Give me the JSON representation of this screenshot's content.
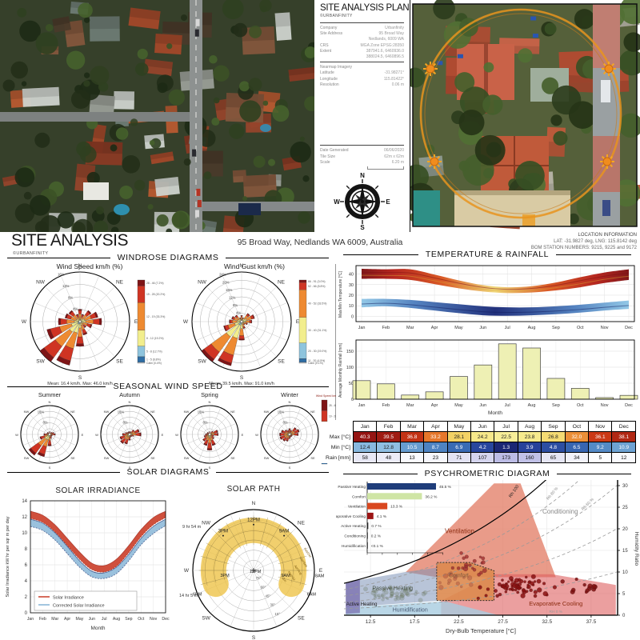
{
  "brand": "©URBANFINITY",
  "plan_panel": {
    "title": "SITE ANALYSIS PLAN",
    "info": [
      {
        "label": "Company",
        "value": "Urbanfinity"
      },
      {
        "label": "Site Address",
        "value": "95 Broad Way"
      },
      {
        "label": "",
        "value": "Nedlands, 6009 WA"
      },
      {
        "label": "CRS",
        "value": "MGA Zone EPSG:28350"
      },
      {
        "label": "Extent",
        "value": "387941.6, 6460936.0"
      },
      {
        "label": "",
        "value": "388024.5, 6460896.5"
      }
    ],
    "imagery": [
      {
        "label": "Nearmap Imagery",
        "value": ""
      },
      {
        "label": "Latitude",
        "value": "-31.98271°"
      },
      {
        "label": "Longitude",
        "value": "115.81422°"
      },
      {
        "label": "Resolution",
        "value": "0.06 m"
      }
    ],
    "generated": [
      {
        "label": "Date Generated",
        "value": "06/06/2020"
      },
      {
        "label": "Tile Size",
        "value": "62m x 62m"
      },
      {
        "label": "Scale",
        "value": "6.20 m"
      }
    ],
    "compass": {
      "n": "N",
      "e": "E",
      "s": "S",
      "w": "W"
    }
  },
  "header": {
    "title": "SITE ANALYSIS",
    "brand": "©URBANFINITY",
    "address": "95 Broad Way, Nedlands WA 6009, Australia",
    "location_title": "LOCATION INFORMATION",
    "location_line1": "LAT: -31.9827 deg, LNG: 115.8142 deg",
    "location_line2": "BOM STATION NUMBERS: 9215, 9225 and 9172"
  },
  "sections": {
    "windrose": "WINDROSE DIAGRAMS",
    "seasonal": "SEASONAL WIND SPEED",
    "solar": "SOLAR DIAGRAMS",
    "temp_rain": "TEMPERATURE & RAINFALL",
    "psychro": "PSYCHROMETRIC DIAGRAM"
  },
  "chart_data": [
    {
      "name": "wind_speed_rose",
      "type": "windrose",
      "title": "Wind Speed km/h (%)",
      "ring_ticks": [
        "4%",
        "8%",
        "12%",
        "16%"
      ],
      "ring_max": 16,
      "directions": [
        "N",
        "NNE",
        "NE",
        "ENE",
        "E",
        "ESE",
        "SE",
        "SSE",
        "S",
        "SSW",
        "SW",
        "WSW",
        "W",
        "WNW",
        "NW",
        "NNW"
      ],
      "totals": [
        4,
        2.5,
        4.5,
        6,
        7,
        4,
        2.5,
        4.5,
        8,
        14.5,
        16,
        11,
        7,
        5,
        4.5,
        2.5
      ],
      "stack_fractions": [
        0.06,
        0.2,
        0.36,
        0.28,
        0.1
      ],
      "bin_colors": [
        "#8ec4dd",
        "#f2ee8d",
        "#ee8a31",
        "#cf3423",
        "#7e1416"
      ],
      "legend": [
        {
          "label": "28 - 46 (7.2%)",
          "color": "#7e1416",
          "pct": 7.2
        },
        {
          "label": "19 - 28 (20.2%)",
          "color": "#cf3423",
          "pct": 20.2
        },
        {
          "label": "12 - 19 (33.3%)",
          "color": "#ee8a31",
          "pct": 33.3
        },
        {
          "label": "8 - 12 (19.2%)",
          "color": "#f2ee8d",
          "pct": 19.2
        },
        {
          "label": "5 - 8 (12.7%)",
          "color": "#8ec4dd",
          "pct": 12.7
        },
        {
          "label": "1 - 5 (6.8%)",
          "color": "#2e6da4",
          "pct": 6.8
        },
        {
          "label": "Calm (0.4%)",
          "color": "#dddddd",
          "pct": 0.4
        }
      ],
      "note": "Mean: 16.4 km/h, Max: 46.0 km/h"
    },
    {
      "name": "wind_gust_rose",
      "type": "windrose",
      "title": "Wind Gust km/h (%)",
      "ring_ticks": [
        "4%",
        "8%",
        "12%",
        "16%",
        "20%",
        "24%"
      ],
      "ring_max": 24,
      "directions": [
        "N",
        "NNE",
        "NE",
        "ENE",
        "E",
        "ESE",
        "SE",
        "SSE",
        "S",
        "SSW",
        "SW",
        "WSW",
        "W",
        "WNW",
        "NW",
        "NNW"
      ],
      "totals": [
        3,
        2,
        5,
        6.5,
        5,
        3,
        2,
        3.5,
        9,
        22,
        24,
        9,
        6,
        5,
        4,
        2
      ],
      "stack_fractions": [
        0.08,
        0.3,
        0.38,
        0.18,
        0.06
      ],
      "bin_colors": [
        "#8ec4dd",
        "#f2ee8d",
        "#ee8a31",
        "#cf3423",
        "#7e1416"
      ],
      "legend": [
        {
          "label": "66 - 91 (3.0%)",
          "color": "#7e1416",
          "pct": 3.0
        },
        {
          "label": "52 - 66 (8.8%)",
          "color": "#cf3423",
          "pct": 8.8
        },
        {
          "label": "40 - 52 (33.5%)",
          "color": "#ee8a31",
          "pct": 33.5
        },
        {
          "label": "30 - 40 (31.1%)",
          "color": "#f2ee8d",
          "pct": 31.1
        },
        {
          "label": "20 - 30 (19.0%)",
          "color": "#8ec4dd",
          "pct": 19.0
        },
        {
          "label": "11 - 20 (4.5%)",
          "color": "#2e6da4",
          "pct": 4.5
        },
        {
          "label": "Calm (0.1%)",
          "color": "#dddddd",
          "pct": 0.1
        }
      ],
      "note": "Mean: 39.5 km/h, Max: 91.0 km/h"
    },
    {
      "name": "seasonal_wind",
      "type": "windrose-small",
      "legend_title": "Wind Speed km/h",
      "legend": [
        {
          "label": "28 - 46",
          "color": "#7e1416"
        },
        {
          "label": "19 - 28",
          "color": "#cf3423"
        },
        {
          "label": "12 - 19",
          "color": "#ee8a31"
        },
        {
          "label": "8 - 12",
          "color": "#f2ee8d"
        },
        {
          "label": "5 - 8",
          "color": "#8ec4dd"
        },
        {
          "label": "1 - 5",
          "color": "#2e6da4"
        }
      ],
      "roses": [
        {
          "title": "Summer",
          "totals": [
            2,
            1,
            2,
            3,
            4,
            2,
            2,
            3,
            8,
            16,
            18,
            7,
            4,
            2,
            2,
            1
          ]
        },
        {
          "title": "Autumn",
          "totals": [
            2,
            2,
            4,
            7,
            8,
            3,
            2,
            2,
            4,
            7,
            8,
            7,
            5,
            3,
            2,
            2
          ]
        },
        {
          "title": "Spring",
          "totals": [
            2,
            1,
            3,
            6,
            6,
            3,
            4,
            8,
            11,
            8,
            6,
            4,
            3,
            2,
            2,
            1
          ]
        },
        {
          "title": "Winter",
          "totals": [
            4,
            3,
            6,
            7,
            6,
            2,
            2,
            2,
            3,
            5,
            6,
            7,
            7,
            6,
            4,
            3
          ]
        }
      ]
    },
    {
      "name": "solar_irradiance",
      "type": "area",
      "title": "SOLAR IRRADIANCE",
      "xlabel": "Month",
      "ylabel": "Solar Irradiance kW hr per sqr m per day",
      "months": [
        "Jan",
        "Feb",
        "Mar",
        "Apr",
        "May",
        "Jun",
        "Jul",
        "Aug",
        "Sep",
        "Oct",
        "Nov",
        "Dec"
      ],
      "ylim": [
        0,
        14
      ],
      "yticks": [
        0,
        2,
        4,
        6,
        8,
        10,
        12,
        14
      ],
      "series": [
        {
          "name": "Solar Irradiance",
          "color": "#cc4733",
          "edge": "#9c2418",
          "hi": [
            12.7,
            12.2,
            11.0,
            9.3,
            7.6,
            6.2,
            5.9,
            6.7,
            8.4,
            10.4,
            11.9,
            12.7
          ],
          "lo": [
            11.8,
            11.3,
            10.1,
            8.4,
            6.7,
            5.4,
            5.1,
            5.8,
            7.5,
            9.5,
            11.0,
            11.9
          ]
        },
        {
          "name": "Corrected Solar Irradiance",
          "color": "#8cb8d8",
          "edge": "#1c2f6e",
          "hi": [
            11.7,
            11.2,
            10.0,
            8.3,
            6.5,
            5.2,
            5.0,
            5.7,
            7.3,
            9.3,
            10.8,
            11.7
          ],
          "lo": [
            10.8,
            10.3,
            9.1,
            7.4,
            5.7,
            4.5,
            4.3,
            4.9,
            6.5,
            8.5,
            9.9,
            10.9
          ]
        }
      ]
    },
    {
      "name": "solar_path",
      "type": "polar",
      "title": "SOLAR PATH",
      "compass": [
        "N",
        "NE",
        "E",
        "SE",
        "S",
        "SW",
        "W",
        "NW"
      ],
      "elev_labels": [
        "15°",
        "30°",
        "45°",
        "60°",
        "75°"
      ],
      "time_labels_outer": [
        "3PM",
        "12PM",
        "9AM"
      ],
      "time_labels_inner": [
        "3PM",
        "12PM",
        "9AM"
      ],
      "time_label_left": "6PM",
      "time_label_right": "6AM",
      "time_label_right2": "8AM",
      "daylength_min": "9 hr 54 m",
      "daylength_max": "14 hr 5 m",
      "month_edge_labels": [
        "Feb/Oct",
        "Mar/Sep",
        "Apr/Aug",
        "May/Jul",
        "Jun"
      ],
      "band_color": "#edc348"
    },
    {
      "name": "temperature",
      "type": "band",
      "ylabel": "Max/Min Temperature [°C]",
      "months": [
        "Jan",
        "Feb",
        "Mar",
        "Apr",
        "May",
        "Jun",
        "Jul",
        "Aug",
        "Sep",
        "Oct",
        "Nov",
        "Dec"
      ],
      "yticks": [
        0,
        10,
        20,
        30,
        40
      ],
      "ylim": [
        -5,
        48
      ],
      "max_hi": [
        45,
        44.5,
        44.5,
        39.5,
        34,
        29.5,
        27.5,
        28.5,
        32,
        37,
        41.5,
        44.5
      ],
      "max_lo": [
        35.5,
        35.5,
        34.5,
        30.5,
        26.5,
        23.5,
        22,
        22.5,
        24.5,
        27.5,
        31.5,
        34.5
      ],
      "min_hi": [
        16.5,
        16.5,
        15.5,
        13.5,
        11.5,
        9.5,
        8.5,
        8.5,
        9.5,
        11,
        13,
        15
      ],
      "min_lo": [
        8.5,
        9.5,
        8,
        5.5,
        3,
        1,
        0.5,
        1,
        2,
        3.5,
        5.5,
        7
      ]
    },
    {
      "name": "rainfall",
      "type": "bar",
      "ylabel": "Average Monthly Rainfall [mm]",
      "xlabel": "Month",
      "months": [
        "Jan",
        "Feb",
        "Mar",
        "Apr",
        "May",
        "Jun",
        "Jul",
        "Aug",
        "Sep",
        "Oct",
        "Nov",
        "Dec"
      ],
      "yticks": [
        0,
        50,
        100,
        150
      ],
      "ylim": [
        0,
        185
      ],
      "values": [
        58,
        48,
        13,
        23,
        71,
        107,
        173,
        160,
        65,
        34,
        5,
        12
      ],
      "bar_color": "#eef0b4",
      "bar_edge": "#444444"
    },
    {
      "name": "climate_table",
      "type": "table",
      "columns": [
        "Jan",
        "Feb",
        "Mar",
        "Apr",
        "May",
        "Jun",
        "Jul",
        "Aug",
        "Sep",
        "Oct",
        "Nov",
        "Dec"
      ],
      "rows": [
        {
          "label": "Max [°C]",
          "values": [
            40.3,
            39.5,
            36.8,
            33.2,
            28.1,
            24.2,
            22.5,
            23.8,
            26.8,
            32.0,
            36.1,
            38.1
          ]
        },
        {
          "label": "Min [°C]",
          "values": [
            12.4,
            12.8,
            10.5,
            8.7,
            6.9,
            4.2,
            1.3,
            3.9,
            4.8,
            6.5,
            9.2,
            10.9
          ]
        },
        {
          "label": "Rain [mm]",
          "values": [
            58,
            48,
            13,
            23,
            71,
            107,
            173,
            160,
            65,
            34,
            5,
            12
          ]
        }
      ]
    },
    {
      "name": "psychrometric",
      "type": "scatter",
      "title": "PSYCHROMETRIC DIAGRAM",
      "xlabel": "Dry-Bulb Temperature [°C]",
      "ylabel_right": "Humidity Ratio",
      "xticks": [
        12.5,
        17.5,
        22.5,
        27.5,
        32.5,
        37.5
      ],
      "yticks": [
        0,
        5,
        10,
        15,
        20,
        25,
        30
      ],
      "xlim": [
        9.5,
        40.5
      ],
      "ylim": [
        0,
        31
      ],
      "strategies": [
        {
          "label": "Passive Heating",
          "value": 45.5,
          "value_label": "45.5 %",
          "color": "#1f3d7a"
        },
        {
          "label": "Comfort",
          "value": 36.2,
          "value_label": "36.2 %",
          "color": "#cfe5a5"
        },
        {
          "label": "Ventilation",
          "value": 13.3,
          "value_label": "13.3 %",
          "color": "#d9471f"
        },
        {
          "label": "Evaporative Cooling",
          "value": 4.1,
          "value_label": "4.1 %",
          "color": "#9c1414"
        },
        {
          "label": "Active Heating",
          "value": 0.7,
          "value_label": "0.7 %",
          "color": "#222222"
        },
        {
          "label": "Conditioning",
          "value": 0.2,
          "value_label": "0.2 %",
          "color": "#222222"
        },
        {
          "label": "Humidification",
          "value": 0.1,
          "value_label": "<0.1 %",
          "color": "#222222"
        }
      ],
      "regions": [
        {
          "label": "Ventilation",
          "color": "#e4826b",
          "opacity": 0.8,
          "points": [
            [
              16.5,
              10
            ],
            [
              26.5,
              30.5
            ],
            [
              29.5,
              30.5
            ],
            [
              33.5,
              8.8
            ],
            [
              20,
              8.8
            ]
          ]
        },
        {
          "label": "Evaporative Cooling",
          "color": "#de5f5f",
          "opacity": 0.6,
          "points": [
            [
              20.5,
              0
            ],
            [
              40.3,
              0
            ],
            [
              40.3,
              7
            ],
            [
              33,
              9.5
            ],
            [
              26.5,
              9.5
            ],
            [
              20.5,
              3.3
            ]
          ]
        },
        {
          "label": "Humidification",
          "color": "#a8cce0",
          "opacity": 0.8,
          "points": [
            [
              9.7,
              0
            ],
            [
              27,
              0
            ],
            [
              21,
              3.2
            ],
            [
              9.7,
              1.8
            ]
          ]
        },
        {
          "label": "Passive Heating",
          "color": "#7d94b8",
          "opacity": 0.55,
          "points": [
            [
              9.7,
              1.8
            ],
            [
              20,
              3.3
            ],
            [
              20,
              11
            ],
            [
              16.5,
              10
            ],
            [
              9.7,
              7.6
            ]
          ]
        },
        {
          "label": "Active Heating",
          "color": "#6f5fa8",
          "opacity": 0.65,
          "points": [
            [
              9.7,
              0.3
            ],
            [
              11.3,
              0.5
            ],
            [
              11.3,
              8.3
            ],
            [
              9.7,
              7.6
            ]
          ]
        },
        {
          "label": "Comfort",
          "color": "#dd8a4f",
          "opacity": 0.9,
          "dashed": true,
          "points": [
            [
              20,
              3.4
            ],
            [
              26.5,
              3.4
            ],
            [
              26.5,
              10.3
            ],
            [
              23.8,
              12.2
            ],
            [
              20,
              12.2
            ]
          ]
        }
      ],
      "region_labels": [
        {
          "text": "Ventilation",
          "t": 22.6,
          "h": 19,
          "size": 8,
          "color": "#8b2b10"
        },
        {
          "text": "Comfort",
          "t": 22.5,
          "h": 8.8,
          "size": 7,
          "color": "#7a5a40"
        },
        {
          "text": "Passive Heating",
          "t": 15,
          "h": 5.8,
          "size": 7,
          "color": "#3f4a3a"
        },
        {
          "text": "Active Heating",
          "t": 11.5,
          "h": 2.2,
          "size": 6,
          "color": "#222222"
        },
        {
          "text": "Humidification",
          "t": 17,
          "h": 0.8,
          "size": 7,
          "color": "#4a5a74"
        },
        {
          "text": "Evaporative Cooling",
          "t": 33.5,
          "h": 2.2,
          "size": 7.5,
          "color": "#8b2b10"
        },
        {
          "text": "Conditioning",
          "t": 34,
          "h": 23.5,
          "size": 8,
          "color": "#888888"
        }
      ],
      "rh_labels": [
        {
          "text": "Rh 100",
          "rh": 1.0
        },
        {
          "text": "Rh 80 %",
          "rh": 0.8
        },
        {
          "text": "Rh 60 %",
          "rh": 0.6
        },
        {
          "text": "RH 0 %",
          "rh": 0.0
        }
      ],
      "clusters": [
        {
          "color": "#8a1111",
          "opacity": 0.85,
          "n": 65,
          "t": 29,
          "h": 6.5,
          "st": 4,
          "sh": 2.8
        },
        {
          "color": "#a03030",
          "opacity": 0.8,
          "n": 20,
          "t": 24.5,
          "h": 12,
          "st": 2,
          "sh": 3
        },
        {
          "color": "#6a7a5f",
          "opacity": 0.3,
          "n": 45,
          "t": 15,
          "h": 5,
          "st": 3,
          "sh": 1.6
        },
        {
          "color": "#7e1010",
          "opacity": 0.85,
          "n": 12,
          "t": 36.5,
          "h": 6,
          "st": 2.2,
          "sh": 2.5
        },
        {
          "color": "#b05540",
          "opacity": 0.5,
          "n": 15,
          "t": 22,
          "h": 8,
          "st": 1.8,
          "sh": 2
        }
      ]
    }
  ]
}
